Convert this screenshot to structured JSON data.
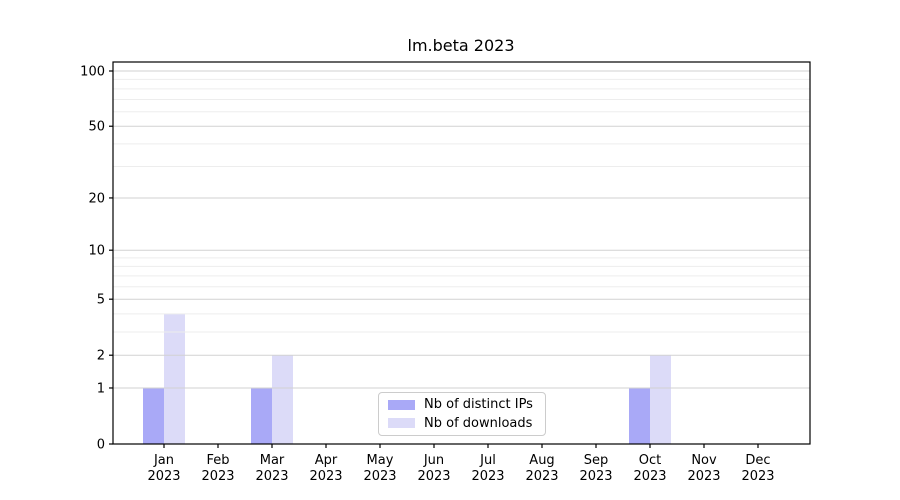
{
  "chart_data": {
    "type": "bar",
    "title": "lm.beta 2023",
    "categories": [
      "Jan",
      "Feb",
      "Mar",
      "Apr",
      "May",
      "Jun",
      "Jul",
      "Aug",
      "Sep",
      "Oct",
      "Nov",
      "Dec"
    ],
    "year_label": "2023",
    "series": [
      {
        "name": "Nb of distinct IPs",
        "color": "#a9a9f7",
        "values": [
          1,
          0,
          1,
          0,
          0,
          0,
          0,
          0,
          0,
          1,
          0,
          0
        ]
      },
      {
        "name": "Nb of downloads",
        "color": "#dcdbf8",
        "values": [
          4,
          0,
          2,
          0,
          0,
          0,
          0,
          0,
          0,
          2,
          0,
          0
        ]
      }
    ],
    "yscale": "log1p",
    "ylim": [
      0,
      112
    ],
    "yticks": [
      0,
      1,
      2,
      5,
      10,
      20,
      50,
      100
    ],
    "minor_yticks": [
      3,
      4,
      6,
      7,
      8,
      9,
      30,
      40,
      60,
      70,
      80,
      90
    ],
    "xlabel": "",
    "ylabel": "",
    "grid": "horizontal",
    "legend_position": "bottom-center",
    "colors": {
      "axis": "#000000",
      "grid_major": "#d2d2d2",
      "grid_minor": "#ededed",
      "background": "#ffffff",
      "text": "#000000"
    }
  }
}
